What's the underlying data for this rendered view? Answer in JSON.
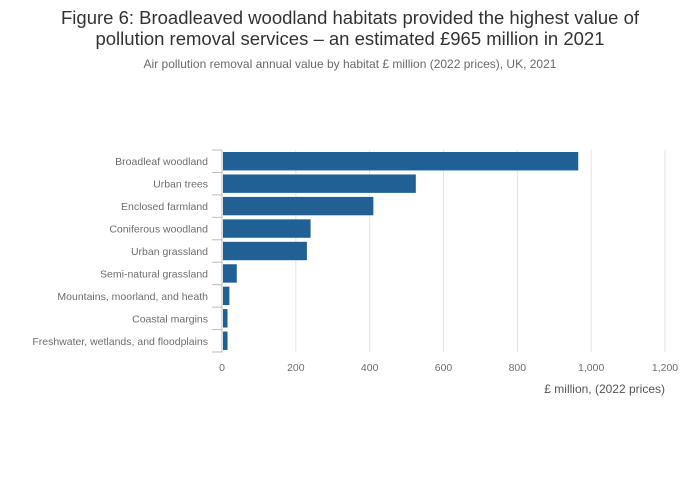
{
  "title_lines": [
    "Figure 6: Broadleaved woodland habitats provided the highest value of",
    "pollution removal services – an estimated £965 million in 2021"
  ],
  "subtitle": "Air pollution removal annual value by habitat £ million (2022 prices), UK, 2021",
  "colors": {
    "bar": "#206095",
    "grid": "#e2e2e2",
    "axis": "#bdbdbd"
  },
  "chart_data": {
    "type": "bar",
    "orientation": "horizontal",
    "title": "Figure 6: Broadleaved woodland habitats provided the highest value of pollution removal services – an estimated £965 million in 2021",
    "subtitle": "Air pollution removal annual value by habitat £ million (2022 prices), UK, 2021",
    "categories": [
      "Broadleaf woodland",
      "Urban trees",
      "Enclosed farmland",
      "Coniferous woodland",
      "Urban grassland",
      "Semi-natural grassland",
      "Mountains, moorland, and heath",
      "Coastal margins",
      "Freshwater, wetlands, and floodplains"
    ],
    "values": [
      965,
      525,
      410,
      240,
      230,
      40,
      20,
      15,
      15
    ],
    "xlabel": "£ million, (2022 prices)",
    "ylabel": "",
    "xlim": [
      0,
      1200
    ],
    "xticks": [
      0,
      200,
      400,
      600,
      800,
      1000,
      1200
    ],
    "xtick_labels": [
      "0",
      "200",
      "400",
      "600",
      "800",
      "1,000",
      "1,200"
    ],
    "grid": true,
    "legend": "none"
  }
}
